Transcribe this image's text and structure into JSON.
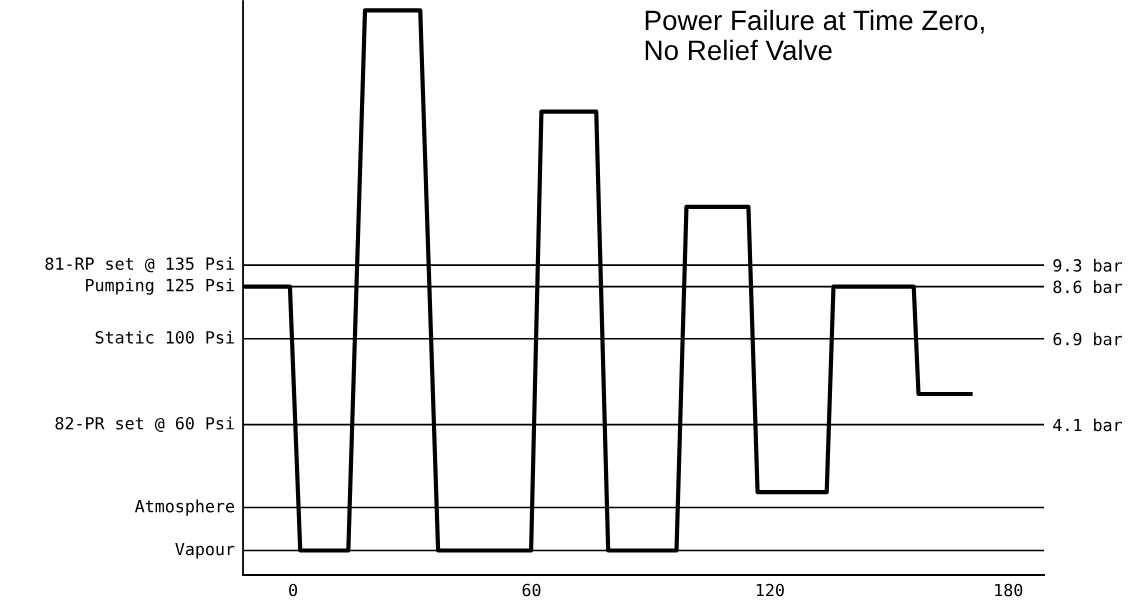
{
  "chart_data": {
    "type": "line",
    "title": "Power Failure at Time Zero,\nNo Relief Valve",
    "x": [
      -12.6,
      -0.8,
      1.8,
      13.9,
      18.1,
      32,
      36.5,
      59.9,
      62.5,
      76.3,
      79.3,
      96.5,
      99,
      114.6,
      116.9,
      134.3,
      136,
      156.2,
      157.4,
      170.5
    ],
    "series": [
      {
        "color": "#000000",
        "values": [
          8.6,
          8.6,
          0,
          0,
          17.6,
          17.6,
          0,
          0,
          14.3,
          14.3,
          0,
          0,
          11.2,
          11.2,
          1.9,
          1.9,
          8.6,
          8.6,
          5.1,
          5.1
        ]
      }
    ],
    "xlim": [
      -12.6,
      189
    ],
    "ylim": [
      -0.8,
      17.9
    ],
    "xticks": [
      0,
      60,
      120,
      180
    ],
    "yticks": [
      {
        "value": 4.1,
        "label": "4.1 bar"
      },
      {
        "value": 6.9,
        "label": "6.9 bar"
      },
      {
        "value": 8.6,
        "label": "8.6 bar"
      },
      {
        "value": 9.3,
        "label": "9.3 bar"
      }
    ],
    "ref_lines": [
      {
        "axis": "y",
        "value": 9.3,
        "label": "81-RP set @ 135 Psi",
        "color": "#000000"
      },
      {
        "axis": "y",
        "value": 8.6,
        "label": "Pumping 125 Psi",
        "color": "#000000"
      },
      {
        "axis": "y",
        "value": 6.9,
        "label": "Static 100 Psi",
        "color": "#000000"
      },
      {
        "axis": "y",
        "value": 4.1,
        "label": "82-PR set @ 60 Psi",
        "color": "#000000"
      },
      {
        "axis": "y",
        "value": 1.4,
        "label": "Atmosphere",
        "color": "#000000"
      },
      {
        "axis": "y",
        "value": 0,
        "label": "Vapour",
        "color": "#000000"
      }
    ],
    "line_style": "solid",
    "marker": "none"
  }
}
